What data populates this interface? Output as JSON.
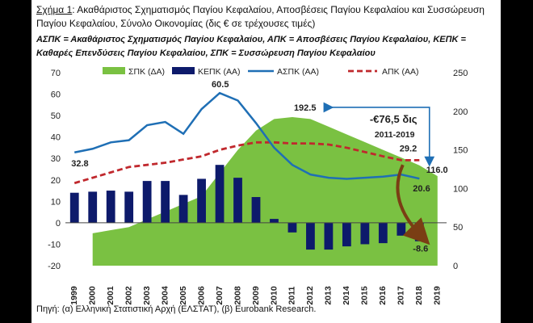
{
  "caption": {
    "figure_label": "Σχήμα 1",
    "title": ": Ακαθάριστος Σχηματισμός Παγίου Κεφαλαίου, Αποσβέσεις Παγίου Κεφαλαίου και Συσσώρευση Παγίου Κεφαλαίου, Σύνολο Οικονομίας (δις € σε τρέχουσες τιμές)",
    "abbreviations": "ΑΣΠΚ = Ακαθάριστος Σχηματισμός Παγίου Κεφαλαίου, ΑΠΚ = Αποσβέσεις Παγίου Κεφαλαίου, ΚΕΠΚ = Καθαρές Επενδύσεις Παγίου Κεφαλαίου, ΣΠΚ = Συσσώρευση Παγίου Κεφαλαίου"
  },
  "source": "Πηγή: (α) Ελληνική Στατιστική Αρχή (ΕΛΣΤΑΤ), (β) Eurobank Research.",
  "chart_data": {
    "type": "combo",
    "categories": [
      "1999",
      "2000",
      "2001",
      "2002",
      "2003",
      "2004",
      "2005",
      "2006",
      "2007",
      "2008",
      "2009",
      "2010",
      "2011",
      "2012",
      "2013",
      "2014",
      "2015",
      "2016",
      "2017",
      "2018",
      "2019"
    ],
    "left_axis": {
      "min": -20,
      "max": 70,
      "ticks": [
        -20,
        -10,
        0,
        10,
        20,
        30,
        40,
        50,
        60,
        70
      ]
    },
    "right_axis": {
      "min": 0,
      "max": 250,
      "ticks": [
        0,
        50,
        100,
        150,
        200,
        250
      ]
    },
    "legend_position": "top",
    "series": [
      {
        "name": "ΣΠΚ (ΔΑ)",
        "type": "area",
        "axis": "right",
        "color": "#7ac142",
        "values": [
          null,
          42,
          46,
          50,
          60,
          70,
          80,
          90,
          120,
          150,
          175,
          190,
          192.5,
          190,
          180,
          170,
          160,
          150,
          140,
          130,
          116.0
        ]
      },
      {
        "name": "ΚΕΠΚ (ΑΑ)",
        "type": "bar",
        "axis": "left",
        "color": "#0d1a6b",
        "values": [
          14,
          14.5,
          15,
          14.5,
          19.5,
          19.5,
          13,
          20.5,
          27,
          21,
          12,
          1.8,
          -4.5,
          -12.5,
          -12.5,
          -11,
          -10,
          -9.5,
          -6,
          -8.6,
          null
        ]
      },
      {
        "name": "ΑΣΠΚ (ΑΑ)",
        "type": "line",
        "axis": "left",
        "color": "#1f6fb5",
        "values": [
          32.8,
          34.5,
          37.5,
          38.5,
          45.5,
          47,
          41.5,
          53,
          60.5,
          57,
          46.5,
          35,
          27,
          22.5,
          21,
          20.5,
          21,
          21.5,
          22.5,
          20.6,
          null
        ]
      },
      {
        "name": "ΑΠΚ (ΑΑ)",
        "type": "line",
        "axis": "left",
        "dashed": true,
        "color": "#c0282d",
        "values": [
          18.5,
          21,
          23.5,
          26,
          27,
          28,
          29.5,
          31,
          34,
          36,
          37.5,
          37.5,
          37,
          37,
          36.5,
          35,
          33,
          31,
          29.2,
          29.2,
          null
        ]
      }
    ],
    "annotations": {
      "label_area_peak": "192.5",
      "label_area_end": "116.0",
      "label_line_start": "32.8",
      "label_line_peak": "60.5",
      "label_line_end": "20.6",
      "label_dashed_end": "29.2",
      "label_bar_end": "-8.6",
      "callout_value": "-€76,5 δις",
      "callout_period": "2011-2019"
    }
  }
}
